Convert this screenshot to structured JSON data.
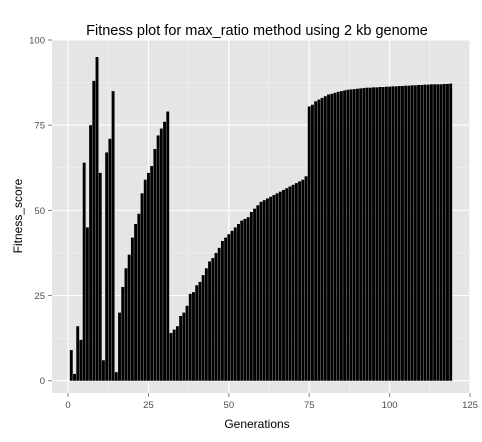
{
  "chart_data": {
    "type": "bar",
    "title": "Fitness plot for max_ratio method using 2 kb genome",
    "xlabel": "Generations",
    "ylabel": "Fitness_score",
    "xlim": [
      -5,
      125
    ],
    "ylim": [
      -3.6,
      100
    ],
    "x_ticks": [
      0,
      25,
      50,
      75,
      100,
      125
    ],
    "y_ticks": [
      0,
      25,
      50,
      75,
      100
    ],
    "grid": true,
    "legend": "none",
    "colors": {
      "panel": "#e5e5e5",
      "grid_major": "#ffffff",
      "grid_minor": "#f2f2f2",
      "bar": "#000000",
      "tick_text": "#4d4d4d"
    },
    "x": [
      1,
      2,
      3,
      4,
      5,
      6,
      7,
      8,
      9,
      10,
      11,
      12,
      13,
      14,
      15,
      16,
      17,
      18,
      19,
      20,
      21,
      22,
      23,
      24,
      25,
      26,
      27,
      28,
      29,
      30,
      31,
      32,
      33,
      34,
      35,
      36,
      37,
      38,
      39,
      40,
      41,
      42,
      43,
      44,
      45,
      46,
      47,
      48,
      49,
      50,
      51,
      52,
      53,
      54,
      55,
      56,
      57,
      58,
      59,
      60,
      61,
      62,
      63,
      64,
      65,
      66,
      67,
      68,
      69,
      70,
      71,
      72,
      73,
      74,
      75,
      76,
      77,
      78,
      79,
      80,
      81,
      82,
      83,
      84,
      85,
      86,
      87,
      88,
      89,
      90,
      91,
      92,
      93,
      94,
      95,
      96,
      97,
      98,
      99,
      100,
      101,
      102,
      103,
      104,
      105,
      106,
      107,
      108,
      109,
      110,
      111,
      112,
      113,
      114,
      115,
      116,
      117,
      118,
      119
    ],
    "values": [
      9,
      2,
      16,
      12,
      64,
      45,
      75,
      88,
      95,
      61,
      6,
      67,
      71,
      85,
      2.5,
      20,
      27.5,
      33,
      37,
      42,
      46,
      49,
      55,
      59,
      61,
      63,
      68,
      72,
      74,
      76,
      79,
      14,
      15,
      16,
      19,
      20,
      22,
      25.5,
      26,
      28,
      29,
      31,
      33,
      35,
      36,
      37.5,
      39,
      41,
      42,
      43,
      44,
      45,
      46,
      47,
      47.5,
      48,
      49.5,
      50.5,
      51.5,
      52.5,
      53,
      53.5,
      54,
      54.5,
      55,
      55.5,
      56,
      56.5,
      57,
      57.5,
      58,
      58.5,
      59,
      60,
      80.5,
      81,
      82,
      82.5,
      83,
      83.5,
      84,
      84.2,
      84.5,
      84.8,
      85,
      85.2,
      85.4,
      85.5,
      85.6,
      85.7,
      85.8,
      85.9,
      86,
      86,
      86.1,
      86.1,
      86.2,
      86.2,
      86.3,
      86.3,
      86.4,
      86.4,
      86.5,
      86.5,
      86.6,
      86.6,
      86.7,
      86.7,
      86.8,
      86.8,
      86.9,
      86.9,
      87,
      87,
      87,
      87,
      87.1,
      87.1,
      87.2
    ]
  }
}
